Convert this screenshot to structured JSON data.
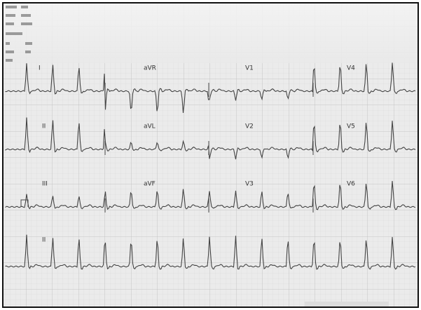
{
  "leads": {
    "rows": [
      [
        "I",
        "aVR",
        "V1",
        "V4"
      ],
      [
        "II",
        "aVL",
        "V2",
        "V5"
      ],
      [
        "III",
        "aVF",
        "V3",
        "V6"
      ],
      [
        "II"
      ]
    ]
  }
}
